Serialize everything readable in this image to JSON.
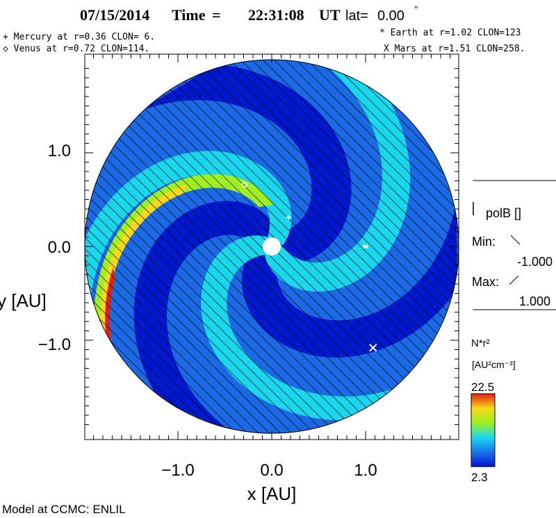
{
  "header": {
    "date": "07/15/2014",
    "time_label": "Time",
    "time_value": "22:31:08",
    "time_unit": "UT",
    "lat_label": "lat=",
    "lat_value": "0.00",
    "lat_unit": "°"
  },
  "planets": {
    "mercury": "+ Mercury at r=0.36 CLON=  6.",
    "venus": "◇ Venus at r=0.72 CLON=114.",
    "earth": "* Earth at  r=1.02 CLON=123",
    "mars": "X Mars at r=1.51 CLON=258."
  },
  "chart_data": {
    "type": "heatmap",
    "projection": "polar solar-wind density map (ecliptic plane)",
    "xlabel": "x [AU]",
    "ylabel": "y [AU]",
    "xlim": [
      -2.0,
      2.0
    ],
    "ylim": [
      -2.0,
      2.0
    ],
    "xticks": [
      -1.0,
      0.0,
      1.0
    ],
    "xtick_labels": [
      "−1.0",
      "0.0",
      "1.0"
    ],
    "yticks": [
      1.0,
      0.0,
      -1.0
    ],
    "ytick_labels": [
      "1.0",
      "0.0",
      "−1.0"
    ],
    "outer_radius_au": 1.98,
    "inner_radius_au": 0.1,
    "colorbar": {
      "quantity": "N*r²",
      "units": "[AU²cm⁻³]",
      "max_label": "22.5",
      "min_label": "2.3",
      "min": 2.3,
      "max": 22.5
    },
    "polarity": {
      "label": "polB []",
      "min_label": "Min:",
      "min_value": "-1.000",
      "max_label": "Max:",
      "max_value": "1.000"
    },
    "markers": [
      {
        "name": "Mercury",
        "symbol": "+",
        "x": 0.18,
        "y": 0.31
      },
      {
        "name": "Venus",
        "symbol": "◇",
        "x": -0.29,
        "y": 0.66
      },
      {
        "name": "Earth",
        "symbol": "*",
        "x": 1.0,
        "y": 0.0
      },
      {
        "name": "Mars",
        "symbol": "X",
        "x": 1.08,
        "y": -1.08
      }
    ],
    "colors": {
      "min": "#0018d0",
      "low": "#1a6ae8",
      "mid": "#18d8f0",
      "high": "#9ef020",
      "higher": "#f8d818",
      "max": "#e02010"
    }
  },
  "footer": "Model at CCMC: ENLIL"
}
